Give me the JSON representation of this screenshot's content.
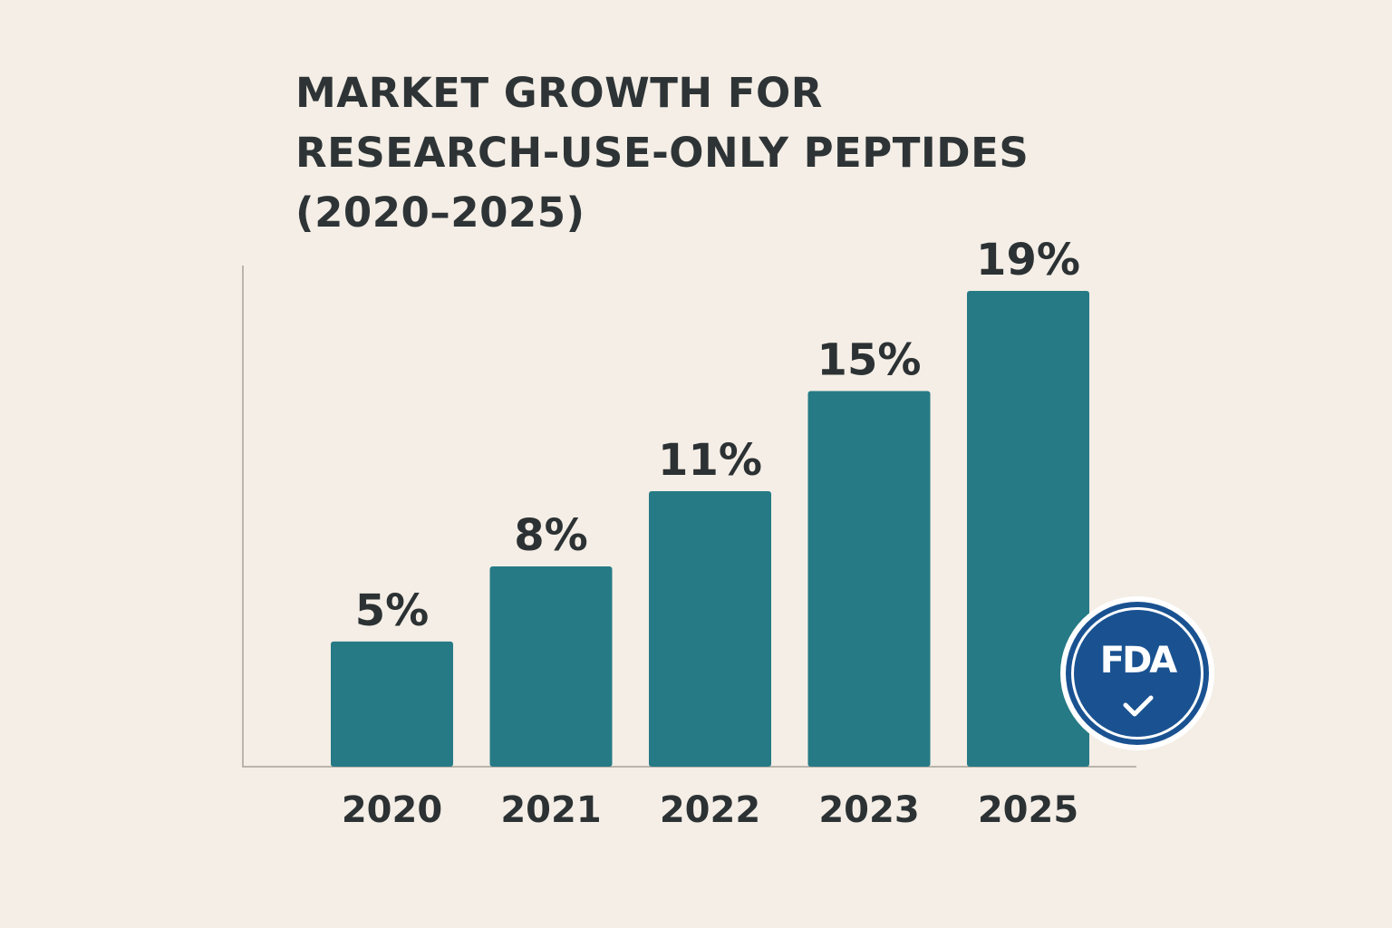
{
  "chart_data": {
    "type": "bar",
    "title_lines": [
      "MARKET GROWTH FOR",
      "RESEARCH-USE-ONLY  PEPTIDES",
      "(2020–2025)"
    ],
    "categories": [
      "2020",
      "2021",
      "2022",
      "2023",
      "2025"
    ],
    "values": [
      5,
      8,
      11,
      15,
      19
    ],
    "value_labels": [
      "5%",
      "8%",
      "11%",
      "15%",
      "19%"
    ],
    "xlabel": "",
    "ylabel": "",
    "ylim": [
      0,
      19
    ],
    "grid": false,
    "bar_color": "#267a85",
    "axis_color": "#b9b4ac"
  },
  "badge": {
    "logo_text": "FDA",
    "icon": "checkmark-icon",
    "color": "#1a5291"
  }
}
